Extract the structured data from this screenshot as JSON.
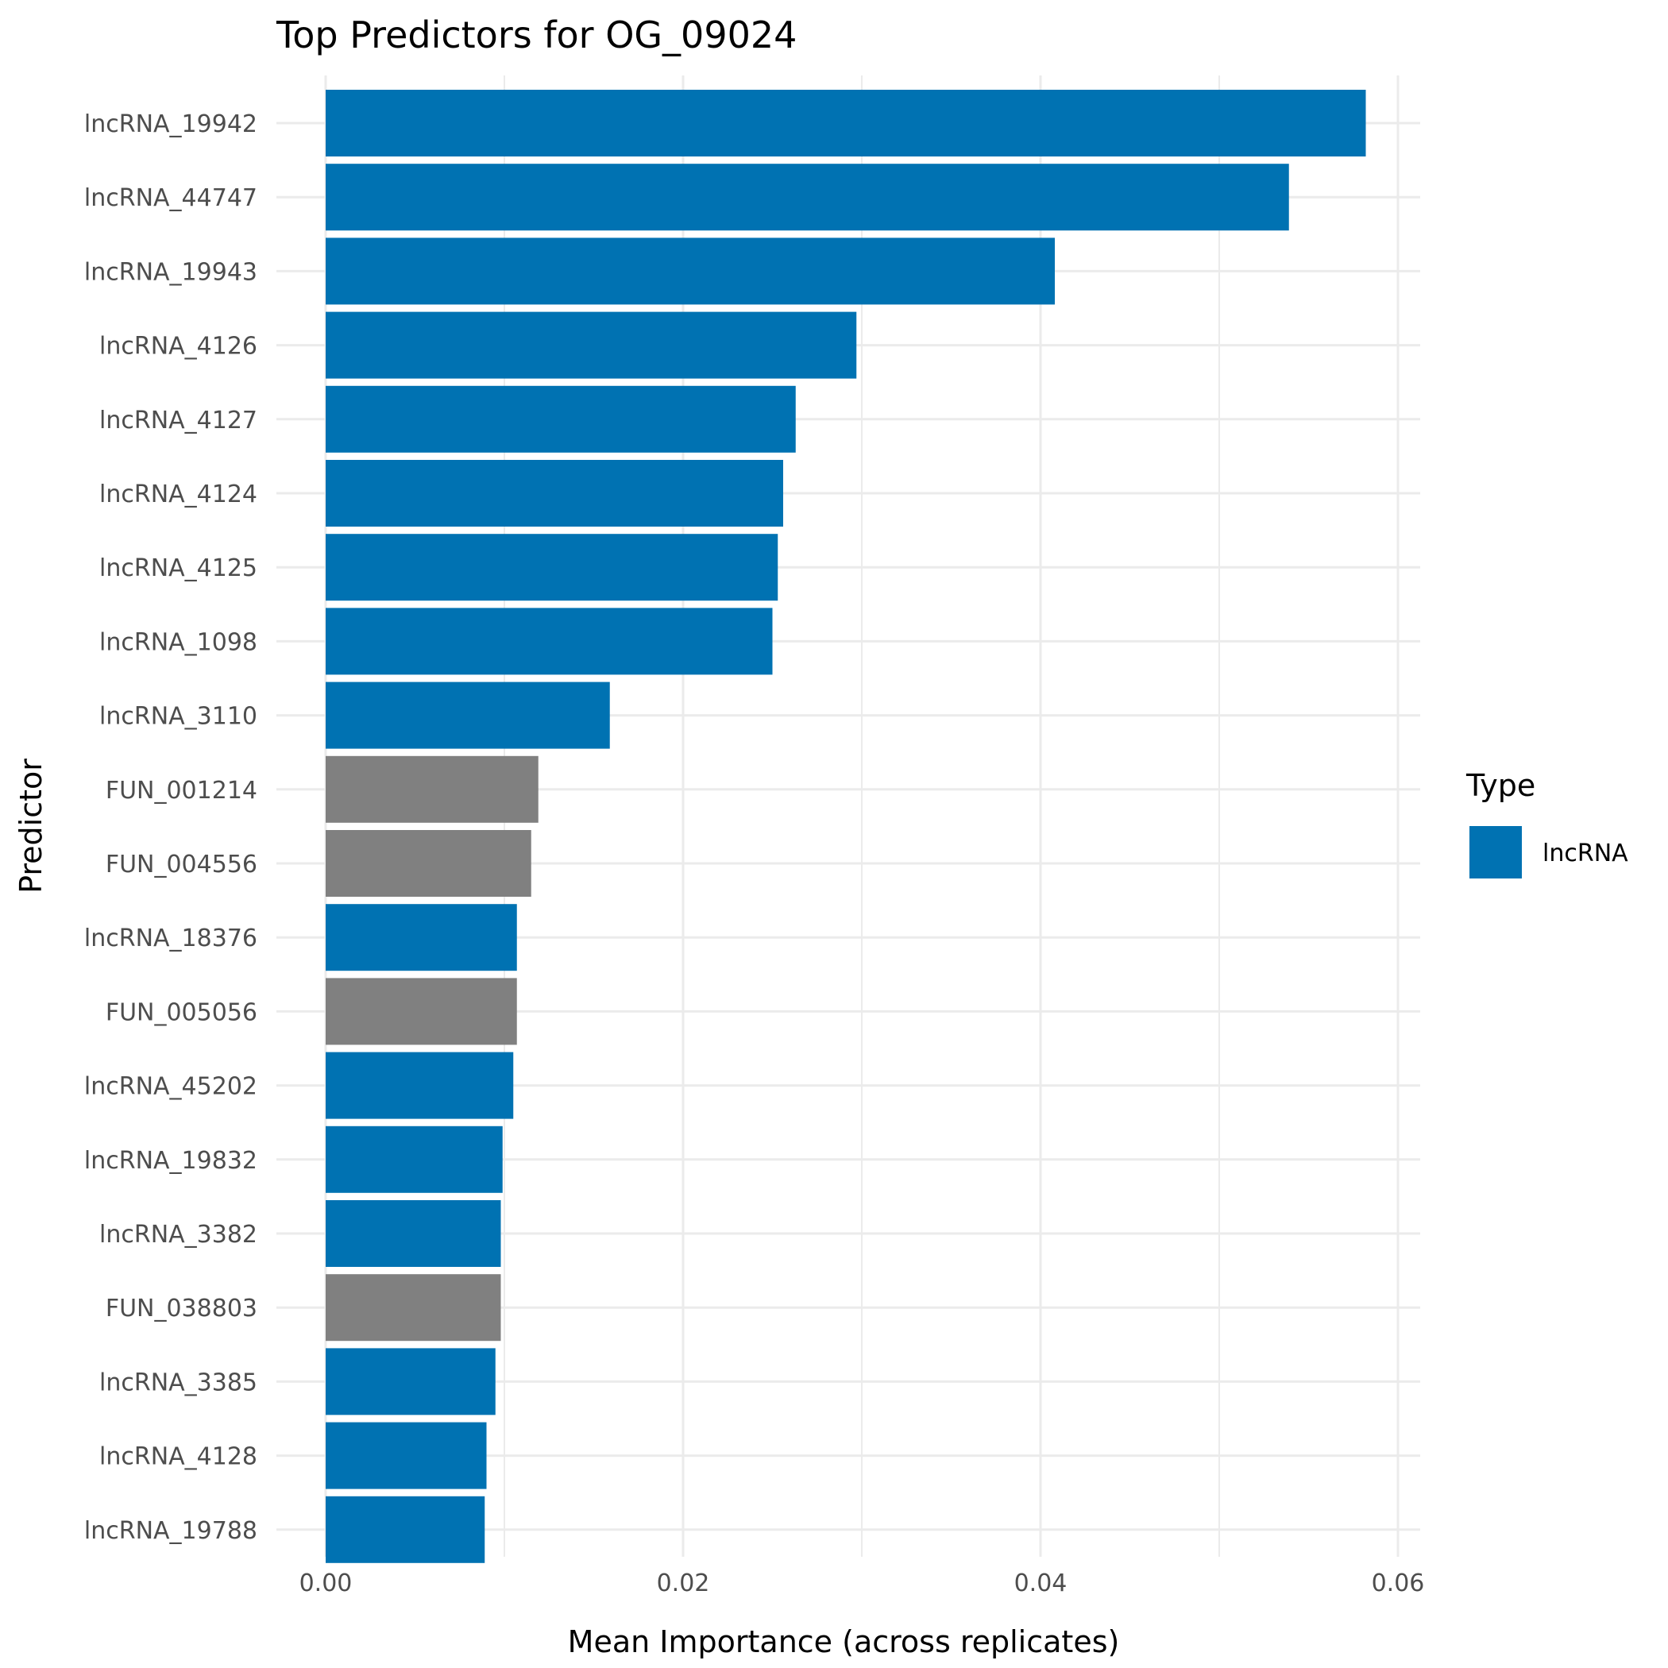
{
  "chart_data": {
    "type": "bar",
    "orientation": "horizontal",
    "title": "Top Predictors for OG_09024",
    "xlabel": "Mean Importance (across replicates)",
    "ylabel": "Predictor",
    "xlim": [
      0,
      0.061
    ],
    "xticks": [
      0.0,
      0.02,
      0.04,
      0.06
    ],
    "xtick_labels": [
      "0.00",
      "0.02",
      "0.04",
      "0.06"
    ],
    "grid": true,
    "legend": {
      "title": "Type",
      "placement": "right",
      "entries": [
        {
          "label": "lncRNA",
          "color": "#0072B2"
        }
      ]
    },
    "colors": {
      "lncRNA": "#0072B2",
      "FUN": "#808080"
    },
    "categories": [
      "lncRNA_19942",
      "lncRNA_44747",
      "lncRNA_19943",
      "lncRNA_4126",
      "lncRNA_4127",
      "lncRNA_4124",
      "lncRNA_4125",
      "lncRNA_1098",
      "lncRNA_3110",
      "FUN_001214",
      "FUN_004556",
      "lncRNA_18376",
      "FUN_005056",
      "lncRNA_45202",
      "lncRNA_19832",
      "lncRNA_3382",
      "FUN_038803",
      "lncRNA_3385",
      "lncRNA_4128",
      "lncRNA_19788"
    ],
    "values": [
      0.0582,
      0.0539,
      0.0408,
      0.0297,
      0.0263,
      0.0256,
      0.0253,
      0.025,
      0.0159,
      0.0119,
      0.0115,
      0.0107,
      0.0107,
      0.0105,
      0.0099,
      0.0098,
      0.0098,
      0.0095,
      0.009,
      0.0089
    ],
    "types": [
      "lncRNA",
      "lncRNA",
      "lncRNA",
      "lncRNA",
      "lncRNA",
      "lncRNA",
      "lncRNA",
      "lncRNA",
      "lncRNA",
      "FUN",
      "FUN",
      "lncRNA",
      "FUN",
      "lncRNA",
      "lncRNA",
      "lncRNA",
      "FUN",
      "lncRNA",
      "lncRNA",
      "lncRNA"
    ]
  }
}
